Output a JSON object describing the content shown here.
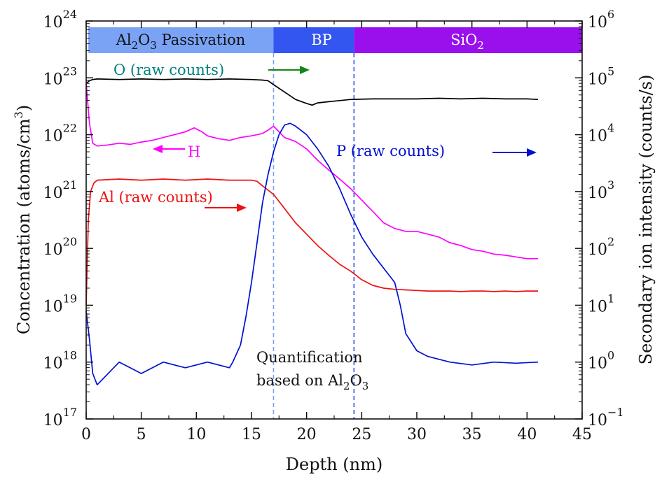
{
  "chart_data": {
    "type": "line",
    "title": "",
    "xlabel": "Depth (nm)",
    "ylabel_left": "Concentration (atoms/cm3)",
    "ylabel_right": "Secondary ion intensity (counts/s)",
    "xlim": [
      0,
      45
    ],
    "ylim_left_exp": [
      17,
      24
    ],
    "ylim_right_exp": [
      -1,
      6
    ],
    "x_ticks": [
      "0",
      "5",
      "10",
      "15",
      "20",
      "25",
      "30",
      "35",
      "40",
      "45"
    ],
    "x_tick_values": [
      0,
      5,
      10,
      15,
      20,
      25,
      30,
      35,
      40,
      45
    ],
    "y_left_ticks": [
      {
        "base": "10",
        "exp": "17",
        "value": 17
      },
      {
        "base": "10",
        "exp": "18",
        "value": 18
      },
      {
        "base": "10",
        "exp": "19",
        "value": 19
      },
      {
        "base": "10",
        "exp": "20",
        "value": 20
      },
      {
        "base": "10",
        "exp": "21",
        "value": 21
      },
      {
        "base": "10",
        "exp": "22",
        "value": 22
      },
      {
        "base": "10",
        "exp": "23",
        "value": 23
      },
      {
        "base": "10",
        "exp": "24",
        "value": 24
      }
    ],
    "y_right_ticks": [
      {
        "base": "10",
        "exp": "−1",
        "value": -1
      },
      {
        "base": "10",
        "exp": "0",
        "value": 0
      },
      {
        "base": "10",
        "exp": "1",
        "value": 1
      },
      {
        "base": "10",
        "exp": "2",
        "value": 2
      },
      {
        "base": "10",
        "exp": "3",
        "value": 3
      },
      {
        "base": "10",
        "exp": "4",
        "value": 4
      },
      {
        "base": "10",
        "exp": "5",
        "value": 5
      },
      {
        "base": "10",
        "exp": "6",
        "value": 6
      }
    ],
    "regions": [
      {
        "name": "Al2O3 Passivation",
        "x_start": 0.2,
        "x_end": 17,
        "color": "#7aa3f5",
        "text_color": "#111111"
      },
      {
        "name": "BP",
        "x_start": 17,
        "x_end": 24.3,
        "color": "#3456f0",
        "text_color": "#ffffff"
      },
      {
        "name": "SiO2",
        "x_start": 24.3,
        "x_end": 45,
        "color": "#9a10ec",
        "text_color": "#ffffff"
      }
    ],
    "interfaces": [
      {
        "x": 17,
        "color": "#7aa3f5"
      },
      {
        "x": 24.3,
        "color": "#3456f0"
      }
    ],
    "series": [
      {
        "name": "O (raw counts)",
        "axis": "left",
        "color": "#000000",
        "points": [
          [
            0,
            22.9
          ],
          [
            0.3,
            22.95
          ],
          [
            0.6,
            22.97
          ],
          [
            1,
            22.98
          ],
          [
            3,
            22.97
          ],
          [
            5,
            22.98
          ],
          [
            7,
            22.97
          ],
          [
            9,
            22.98
          ],
          [
            11,
            22.97
          ],
          [
            13,
            22.98
          ],
          [
            15,
            22.97
          ],
          [
            16,
            22.96
          ],
          [
            16.5,
            22.95
          ],
          [
            17,
            22.88
          ],
          [
            18,
            22.75
          ],
          [
            19,
            22.62
          ],
          [
            20,
            22.55
          ],
          [
            20.5,
            22.52
          ],
          [
            21,
            22.56
          ],
          [
            22,
            22.58
          ],
          [
            23,
            22.6
          ],
          [
            24,
            22.62
          ],
          [
            26,
            22.63
          ],
          [
            28,
            22.63
          ],
          [
            30,
            22.63
          ],
          [
            32,
            22.64
          ],
          [
            34,
            22.63
          ],
          [
            36,
            22.64
          ],
          [
            38,
            22.63
          ],
          [
            40,
            22.63
          ],
          [
            41,
            22.62
          ]
        ]
      },
      {
        "name": "H",
        "axis": "left",
        "color": "#ff00ff",
        "points": [
          [
            0,
            22.9
          ],
          [
            0.3,
            22.2
          ],
          [
            0.6,
            21.85
          ],
          [
            1,
            21.8
          ],
          [
            2,
            21.82
          ],
          [
            3,
            21.85
          ],
          [
            4,
            21.83
          ],
          [
            5,
            21.87
          ],
          [
            6,
            21.9
          ],
          [
            7,
            21.95
          ],
          [
            8,
            22.0
          ],
          [
            9,
            22.05
          ],
          [
            9.8,
            22.12
          ],
          [
            10.5,
            22.05
          ],
          [
            11,
            21.98
          ],
          [
            12,
            21.93
          ],
          [
            13,
            21.9
          ],
          [
            14,
            21.95
          ],
          [
            15,
            21.98
          ],
          [
            16,
            22.02
          ],
          [
            16.5,
            22.08
          ],
          [
            17,
            22.15
          ],
          [
            17.5,
            22.05
          ],
          [
            18,
            21.95
          ],
          [
            19,
            21.88
          ],
          [
            20,
            21.75
          ],
          [
            21,
            21.55
          ],
          [
            22,
            21.38
          ],
          [
            23,
            21.22
          ],
          [
            24,
            21.05
          ],
          [
            25,
            20.85
          ],
          [
            26,
            20.65
          ],
          [
            27,
            20.45
          ],
          [
            28,
            20.35
          ],
          [
            29,
            20.3
          ],
          [
            30,
            20.3
          ],
          [
            31,
            20.25
          ],
          [
            32,
            20.2
          ],
          [
            33,
            20.1
          ],
          [
            34,
            20.05
          ],
          [
            35,
            19.98
          ],
          [
            36,
            19.95
          ],
          [
            37,
            19.9
          ],
          [
            38,
            19.88
          ],
          [
            39,
            19.85
          ],
          [
            40,
            19.82
          ],
          [
            41,
            19.82
          ]
        ]
      },
      {
        "name": "Al (raw counts)",
        "axis": "left",
        "color": "#ee1111",
        "points": [
          [
            0,
            19.0
          ],
          [
            0.2,
            20.5
          ],
          [
            0.4,
            21.0
          ],
          [
            0.7,
            21.15
          ],
          [
            1,
            21.2
          ],
          [
            3,
            21.22
          ],
          [
            5,
            21.2
          ],
          [
            7,
            21.22
          ],
          [
            9,
            21.2
          ],
          [
            11,
            21.22
          ],
          [
            13,
            21.2
          ],
          [
            15,
            21.2
          ],
          [
            15.5,
            21.18
          ],
          [
            16,
            21.1
          ],
          [
            17,
            20.95
          ],
          [
            18,
            20.7
          ],
          [
            19,
            20.45
          ],
          [
            20,
            20.25
          ],
          [
            21,
            20.05
          ],
          [
            22,
            19.88
          ],
          [
            23,
            19.72
          ],
          [
            24,
            19.6
          ],
          [
            25,
            19.45
          ],
          [
            26,
            19.35
          ],
          [
            27,
            19.3
          ],
          [
            28,
            19.28
          ],
          [
            29,
            19.27
          ],
          [
            30,
            19.26
          ],
          [
            31,
            19.25
          ],
          [
            32,
            19.25
          ],
          [
            33,
            19.25
          ],
          [
            34,
            19.24
          ],
          [
            35,
            19.25
          ],
          [
            36,
            19.25
          ],
          [
            37,
            19.24
          ],
          [
            38,
            19.25
          ],
          [
            39,
            19.24
          ],
          [
            40,
            19.25
          ],
          [
            41,
            19.25
          ]
        ]
      },
      {
        "name": "P (raw counts)",
        "axis": "left",
        "color": "#0010d0",
        "points": [
          [
            0,
            18.9
          ],
          [
            0.3,
            18.4
          ],
          [
            0.6,
            17.8
          ],
          [
            1,
            17.6
          ],
          [
            3,
            18.0
          ],
          [
            5,
            17.8
          ],
          [
            7,
            18.0
          ],
          [
            9,
            17.9
          ],
          [
            11,
            18.0
          ],
          [
            13,
            17.9
          ],
          [
            13.3,
            18.0
          ],
          [
            14,
            18.3
          ],
          [
            14.5,
            18.8
          ],
          [
            15,
            19.4
          ],
          [
            15.5,
            20.1
          ],
          [
            16,
            20.8
          ],
          [
            16.5,
            21.3
          ],
          [
            17,
            21.7
          ],
          [
            17.5,
            22.0
          ],
          [
            18,
            22.17
          ],
          [
            18.5,
            22.2
          ],
          [
            19,
            22.15
          ],
          [
            20,
            22.0
          ],
          [
            21,
            21.75
          ],
          [
            22,
            21.45
          ],
          [
            23,
            21.05
          ],
          [
            24,
            20.6
          ],
          [
            25,
            20.2
          ],
          [
            26,
            19.9
          ],
          [
            27,
            19.65
          ],
          [
            28,
            19.4
          ],
          [
            28.5,
            19.0
          ],
          [
            29,
            18.5
          ],
          [
            30,
            18.2
          ],
          [
            31,
            18.1
          ],
          [
            33,
            18.0
          ],
          [
            35,
            17.95
          ],
          [
            37,
            18.0
          ],
          [
            39,
            17.98
          ],
          [
            41,
            18.0
          ]
        ]
      }
    ],
    "annotations": {
      "o_label": "O (raw counts)",
      "h_label": "H",
      "al_label": "Al (raw counts)",
      "p_label": "P (raw counts)",
      "quant_line1": "Quantification",
      "quant_line2": "based on Al2O3"
    }
  }
}
